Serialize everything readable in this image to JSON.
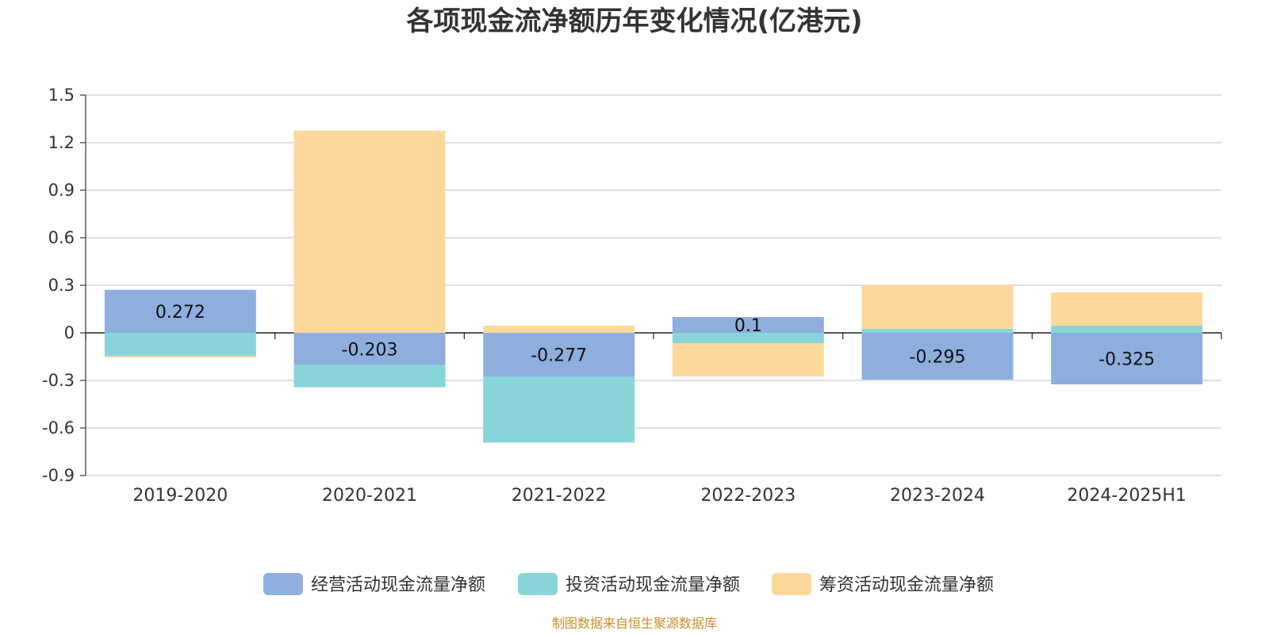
{
  "chart_data": {
    "type": "bar",
    "stacked": true,
    "title": "各项现金流净额历年变化情况(亿港元)",
    "categories": [
      "2019-2020",
      "2020-2021",
      "2021-2022",
      "2022-2023",
      "2023-2024",
      "2024-2025H1"
    ],
    "series": [
      {
        "name": "经营活动现金流量净额",
        "color": "#8eaedd",
        "values": [
          0.272,
          -0.203,
          -0.277,
          0.1,
          -0.295,
          -0.325
        ],
        "labels": [
          "0.272",
          "-0.203",
          "-0.277",
          "0.1",
          "-0.295",
          "-0.325"
        ]
      },
      {
        "name": "投资活动现金流量净额",
        "color": "#87d5d8",
        "values": [
          -0.145,
          -0.14,
          -0.415,
          -0.065,
          0.025,
          0.045
        ]
      },
      {
        "name": "筹资活动现金流量净额",
        "color": "#fdd89b",
        "values": [
          -0.01,
          1.275,
          0.045,
          -0.21,
          0.275,
          0.21
        ]
      }
    ],
    "yticks": [
      "1.5",
      "1.2",
      "0.9",
      "0.6",
      "0.3",
      "0",
      "-0.3",
      "-0.6",
      "-0.9"
    ],
    "ylim": [
      -0.9,
      1.5
    ],
    "grid": true,
    "legend_position": "bottom",
    "source": "制图数据来自恒生聚源数据库"
  }
}
